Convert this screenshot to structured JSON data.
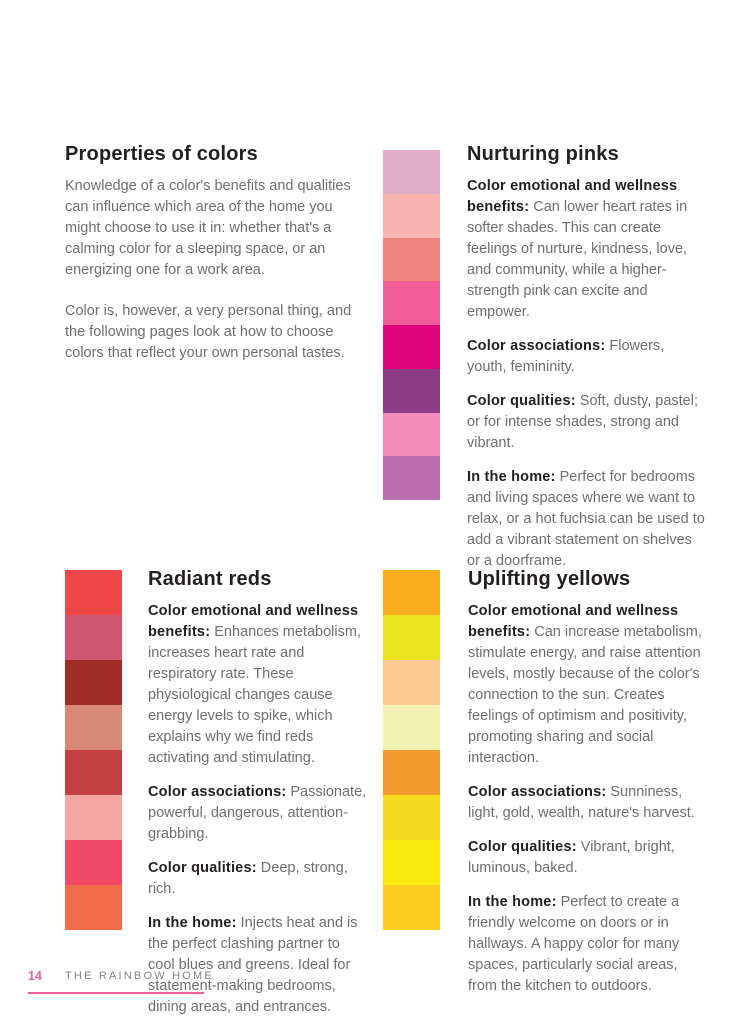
{
  "theme": {
    "heading_color": "#231f20",
    "body_text_color": "#6d6e71",
    "footer_accent_pink": "#ee5f9b",
    "footer_title_gray": "#808285"
  },
  "intro": {
    "title": "Properties of colors",
    "paragraphs": [
      "Knowledge of a color's benefits and qualities can influence which area of the home you might choose to use it in: whether that's a calming color for a sleeping space, or an energizing one for a work area.",
      "Color is, however, a very personal thing, and the following pages look at how to choose colors that reflect your own personal tastes."
    ]
  },
  "sections": [
    {
      "id": "pinks",
      "title": "Nurturing pinks",
      "swatches": [
        "#dfaec6",
        "#f9b4b0",
        "#f0837d",
        "#f25d97",
        "#e2067e",
        "#8d3d85",
        "#f08cb8",
        "#bc6fae"
      ],
      "entries": [
        {
          "label": "Color emotional and wellness benefits:",
          "text": "Can lower heart rates in softer shades. This can create feelings of nurture, kindness, love, and community, while a higher-strength pink can excite and empower."
        },
        {
          "label": "Color associations:",
          "text": "Flowers, youth, femininity."
        },
        {
          "label": "Color qualities:",
          "text": "Soft, dusty, pastel; or for intense shades, strong and vibrant."
        },
        {
          "label": "In the home:",
          "text": "Perfect for bedrooms and living spaces where we want to relax, or a hot fuchsia can be used to add a vibrant statement on shelves or a doorframe."
        }
      ]
    },
    {
      "id": "reds",
      "title": "Radiant reds",
      "swatches": [
        "#ef4747",
        "#d05672",
        "#a02d26",
        "#d98878",
        "#c44141",
        "#f4a7a3",
        "#f04a67",
        "#f06b47"
      ],
      "entries": [
        {
          "label": "Color emotional and wellness benefits:",
          "text": "Enhances metabolism, increases heart rate and respiratory rate. These physiological changes cause energy levels to spike, which explains why we find reds activating and stimulating."
        },
        {
          "label": "Color associations:",
          "text": "Passionate, powerful, dangerous, attention-grabbing."
        },
        {
          "label": "Color qualities:",
          "text": "Deep, strong, rich."
        },
        {
          "label": "In the home:",
          "text": "Injects heat and is the perfect clashing partner to cool blues and greens. Ideal for statement-making bedrooms, dining areas, and entrances."
        }
      ]
    },
    {
      "id": "yellows",
      "title": "Uplifting yellows",
      "swatches": [
        "#faaa1d",
        "#eae520",
        "#fcca90",
        "#f3f0b4",
        "#f49b2d",
        "#f5d91e",
        "#fae90d",
        "#fccd20"
      ],
      "entries": [
        {
          "label": "Color emotional and wellness benefits:",
          "text": "Can increase metabolism, stimulate energy, and raise attention levels, mostly because of the color's connection to the sun. Creates feelings of optimism and positivity, promoting sharing and social interaction."
        },
        {
          "label": "Color associations:",
          "text": "Sunniness, light, gold, wealth, nature's harvest."
        },
        {
          "label": "Color qualities:",
          "text": "Vibrant, bright, luminous, baked."
        },
        {
          "label": "In the home:",
          "text": "Perfect to create a friendly welcome on doors or in hallways. A happy color for many spaces, particularly social areas, from the kitchen to outdoors."
        }
      ]
    }
  ],
  "footer": {
    "page_number": "14",
    "book_title": "THE RAINBOW HOME"
  }
}
